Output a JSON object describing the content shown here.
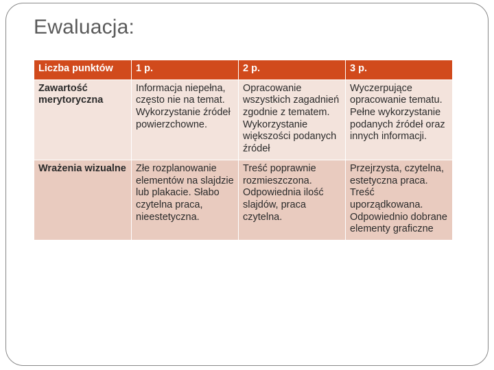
{
  "title": "Ewaluacja:",
  "table": {
    "header_bg": "#d14a1c",
    "header_fg": "#ffffff",
    "row_odd_bg": "#f3e3dc",
    "row_even_bg": "#e9cbbf",
    "row_fg": "#2a2a2a",
    "columns": [
      "Liczba punktów",
      "1 p.",
      "2 p.",
      "3 p."
    ],
    "rows": [
      {
        "label": "Zawartość merytoryczna",
        "cells": [
          "Informacja niepełna, często nie na temat. Wykorzystanie źródeł powierzchowne.",
          "Opracowanie wszystkich zagadnień zgodnie z tematem. Wykorzystanie większości podanych źródeł",
          "Wyczerpujące opracowanie tematu. Pełne wykorzystanie podanych źródeł oraz innych informacji."
        ]
      },
      {
        "label": "Wrażenia wizualne",
        "cells": [
          "Złe rozplanowanie elementów na slajdzie lub plakacie. Słabo czytelna praca, nieestetyczna.",
          "Treść poprawnie rozmieszczona. Odpowiednia ilość slajdów, praca czytelna.",
          "Przejrzysta, czytelna, estetyczna praca. Treść uporządkowana. Odpowiednio dobrane elementy graficzne"
        ]
      }
    ]
  }
}
